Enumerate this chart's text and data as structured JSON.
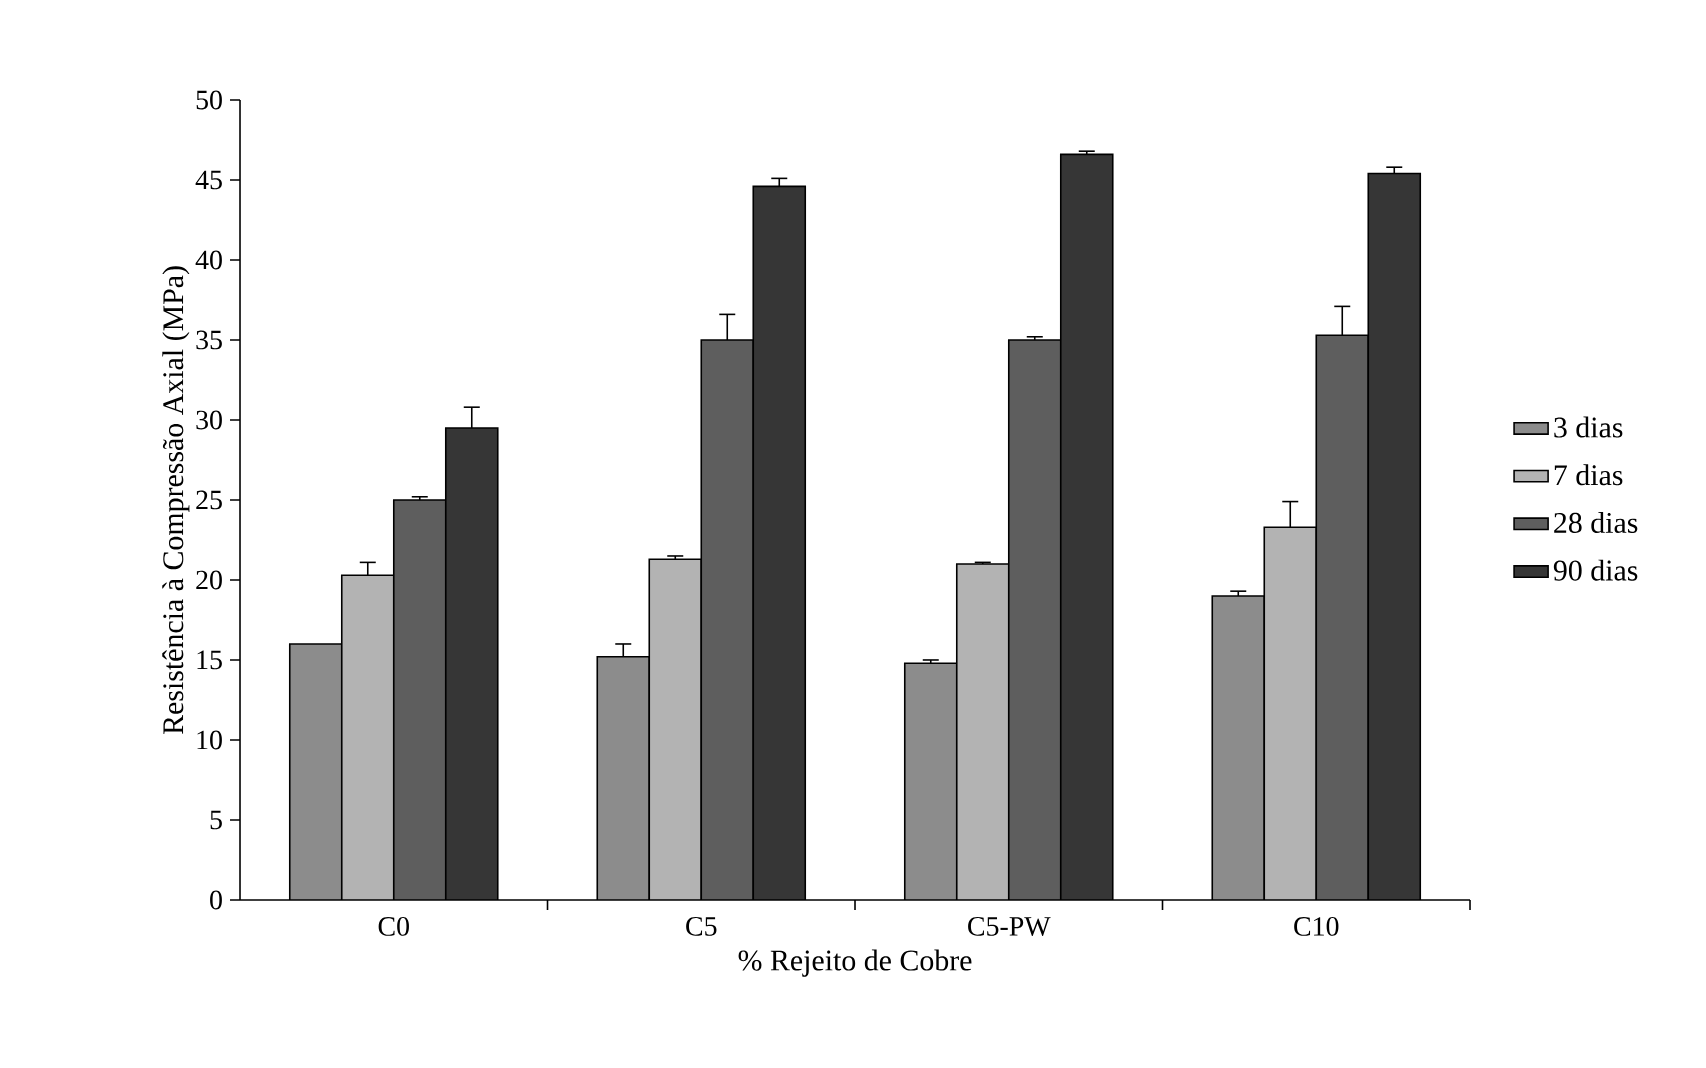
{
  "chart_data": {
    "type": "bar",
    "xlabel": "% Rejeito de Cobre",
    "ylabel": "Resistência à Compressão Axial (MPa)",
    "categories": [
      "C0",
      "C5",
      "C5-PW",
      "C10"
    ],
    "ylim": [
      0,
      50
    ],
    "yticks": [
      0,
      5,
      10,
      15,
      20,
      25,
      30,
      35,
      40,
      45,
      50
    ],
    "legend": "right",
    "grid": false,
    "series": [
      {
        "name": "3 dias",
        "color": "#8c8c8c",
        "values": [
          16,
          15.2,
          14.8,
          19
        ],
        "errors": [
          null,
          0.8,
          0.2,
          0.3
        ]
      },
      {
        "name": "7 dias",
        "color": "#b3b3b3",
        "values": [
          20.3,
          21.3,
          21,
          23.3
        ],
        "errors": [
          0.8,
          0.2,
          0.1,
          1.6
        ]
      },
      {
        "name": "28 dias",
        "color": "#5e5e5e",
        "values": [
          25,
          35,
          35,
          35.3
        ],
        "errors": [
          0.2,
          1.6,
          0.2,
          1.8
        ]
      },
      {
        "name": "90 dias",
        "color": "#363636",
        "values": [
          29.5,
          44.6,
          46.6,
          45.4
        ],
        "errors": [
          1.3,
          0.5,
          0.2,
          0.4
        ]
      }
    ]
  }
}
